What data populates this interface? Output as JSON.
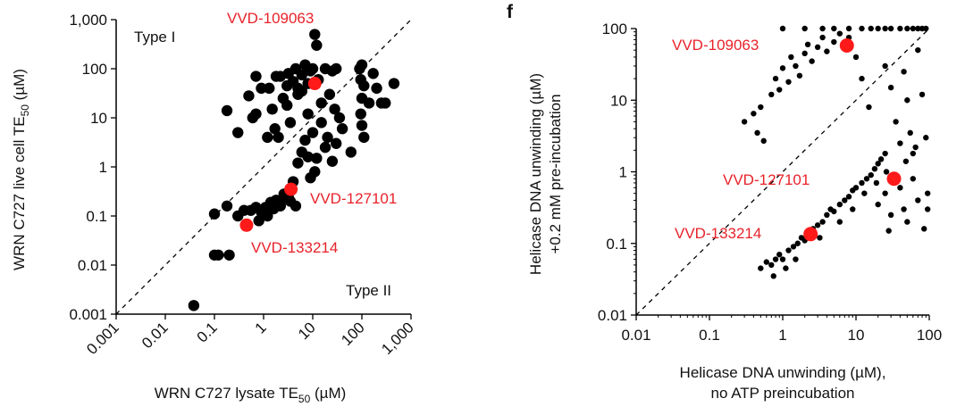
{
  "panel_f_letter": "f",
  "colors": {
    "points": "#000000",
    "highlight": "#ff1a1a",
    "callout_text": "#e8222a",
    "axes": "#000000"
  },
  "chart_data": [
    {
      "type": "scatter",
      "title": "",
      "xlabel": "WRN C727 lysate TE₅₀ (µM)",
      "xlabel_parts": [
        "WRN C727 lysate TE",
        "50",
        " (µM)"
      ],
      "ylabel": "WRN C727 live cell TE₅₀ (µM)",
      "ylabel_parts": [
        "WRN C727 live cell TE",
        "50",
        " (µM)"
      ],
      "xscale": "log",
      "yscale": "log",
      "xlim": [
        0.001,
        1000
      ],
      "ylim": [
        0.001,
        1000
      ],
      "xticks": [
        0.001,
        0.01,
        0.1,
        1,
        10,
        100,
        1000
      ],
      "xtick_labels": [
        "0.001",
        "0.01",
        "0.1",
        "1",
        "10",
        "100",
        "1,000"
      ],
      "yticks": [
        0.001,
        0.01,
        0.1,
        1,
        10,
        100,
        1000
      ],
      "ytick_labels": [
        "0.001",
        "0.01",
        "0.1",
        "1",
        "10",
        "100",
        "1,000"
      ],
      "diagonal": "dashed y = x",
      "annotations": [
        "Type I",
        "Type II"
      ],
      "points": [
        [
          0.038,
          0.0015
        ],
        [
          0.1,
          0.016
        ],
        [
          0.12,
          0.016
        ],
        [
          0.2,
          0.016
        ],
        [
          0.1,
          0.11
        ],
        [
          0.18,
          0.16
        ],
        [
          0.3,
          0.1
        ],
        [
          0.4,
          0.13
        ],
        [
          0.55,
          0.13
        ],
        [
          0.7,
          0.15
        ],
        [
          0.9,
          0.12
        ],
        [
          1.1,
          0.15
        ],
        [
          1.4,
          0.19
        ],
        [
          1.8,
          0.21
        ],
        [
          2.2,
          0.16
        ],
        [
          2.8,
          0.24
        ],
        [
          3.5,
          0.2
        ],
        [
          4.5,
          0.16
        ],
        [
          0.8,
          0.08
        ],
        [
          1.2,
          0.1
        ],
        [
          1.6,
          0.14
        ],
        [
          2.6,
          0.28
        ],
        [
          3.2,
          0.24
        ],
        [
          4,
          0.5
        ],
        [
          5,
          1.2
        ],
        [
          6,
          2
        ],
        [
          7,
          3.5
        ],
        [
          8,
          1.6
        ],
        [
          9,
          0.6
        ],
        [
          10,
          5
        ],
        [
          12,
          1.5
        ],
        [
          15,
          8
        ],
        [
          18,
          2.5
        ],
        [
          20,
          4
        ],
        [
          25,
          1.3
        ],
        [
          30,
          3
        ],
        [
          35,
          10
        ],
        [
          40,
          6
        ],
        [
          60,
          2
        ],
        [
          11,
          0.8
        ],
        [
          0.18,
          14
        ],
        [
          0.3,
          5
        ],
        [
          0.5,
          28
        ],
        [
          0.6,
          10
        ],
        [
          0.7,
          70
        ],
        [
          0.9,
          40
        ],
        [
          1.2,
          4
        ],
        [
          1.5,
          15
        ],
        [
          1.7,
          6
        ],
        [
          2,
          4
        ],
        [
          2.2,
          70
        ],
        [
          2.5,
          25
        ],
        [
          3,
          18
        ],
        [
          3.5,
          8
        ],
        [
          3.2,
          80
        ],
        [
          4,
          55
        ],
        [
          4.5,
          100
        ],
        [
          5,
          30
        ],
        [
          6,
          75
        ],
        [
          7,
          120
        ],
        [
          8,
          50
        ],
        [
          9,
          90
        ],
        [
          10,
          100
        ],
        [
          11,
          500
        ],
        [
          12,
          300
        ],
        [
          13,
          60
        ],
        [
          15,
          20
        ],
        [
          18,
          100
        ],
        [
          22,
          30
        ],
        [
          25,
          90
        ],
        [
          30,
          100
        ],
        [
          28,
          15
        ],
        [
          3,
          45
        ],
        [
          6,
          35
        ],
        [
          90,
          100
        ],
        [
          100,
          120
        ],
        [
          95,
          60
        ],
        [
          110,
          45
        ],
        [
          100,
          25
        ],
        [
          95,
          12
        ],
        [
          100,
          7
        ],
        [
          110,
          4
        ],
        [
          140,
          20
        ],
        [
          170,
          80
        ],
        [
          200,
          40
        ],
        [
          250,
          20
        ],
        [
          300,
          20
        ],
        [
          450,
          50
        ],
        [
          1.8,
          70
        ],
        [
          1.3,
          40
        ],
        [
          0.7,
          12
        ],
        [
          8,
          12
        ],
        [
          5,
          40
        ]
      ],
      "highlighted": [
        {
          "label": "VVD-109063",
          "x": 11,
          "y": 50
        },
        {
          "label": "VVD-127101",
          "x": 3.6,
          "y": 0.35
        },
        {
          "label": "VVD-133214",
          "x": 0.45,
          "y": 0.065
        }
      ]
    },
    {
      "type": "scatter",
      "title": "",
      "xlabel_lines": [
        "Helicase DNA unwinding (µM),",
        "no ATP preincubation"
      ],
      "ylabel_lines": [
        "Helicase DNA unwinding (µM)",
        "+0.2 mM pre-incubation"
      ],
      "xscale": "log",
      "yscale": "log",
      "xlim": [
        0.01,
        100
      ],
      "ylim": [
        0.01,
        100
      ],
      "xticks": [
        0.01,
        0.1,
        1,
        10,
        100
      ],
      "xtick_labels": [
        "0.01",
        "0.1",
        "1",
        "10",
        "100"
      ],
      "yticks": [
        0.01,
        0.1,
        1,
        10,
        100
      ],
      "ytick_labels": [
        "0.01",
        "0.1",
        "1",
        "10",
        "100"
      ],
      "diagonal": "dashed y = x",
      "points": [
        [
          0.3,
          5
        ],
        [
          0.4,
          6.5
        ],
        [
          0.45,
          3.5
        ],
        [
          0.5,
          8
        ],
        [
          0.55,
          2.7
        ],
        [
          0.7,
          12
        ],
        [
          0.8,
          20
        ],
        [
          0.9,
          14
        ],
        [
          1.0,
          28
        ],
        [
          1.2,
          18
        ],
        [
          1.3,
          40
        ],
        [
          1.5,
          30
        ],
        [
          1.7,
          22
        ],
        [
          2.0,
          45
        ],
        [
          2.2,
          60
        ],
        [
          2.5,
          35
        ],
        [
          3.0,
          55
        ],
        [
          3.5,
          75
        ],
        [
          4.0,
          48
        ],
        [
          5.0,
          65
        ],
        [
          6.0,
          85
        ],
        [
          8.0,
          75
        ],
        [
          10,
          40
        ],
        [
          12,
          20
        ],
        [
          15,
          8
        ],
        [
          1.0,
          100
        ],
        [
          2.0,
          100
        ],
        [
          3.5,
          100
        ],
        [
          5.0,
          100
        ],
        [
          8.0,
          100
        ],
        [
          12,
          100
        ],
        [
          16,
          100
        ],
        [
          20,
          100
        ],
        [
          25,
          100
        ],
        [
          30,
          100
        ],
        [
          40,
          100
        ],
        [
          50,
          100
        ],
        [
          60,
          100
        ],
        [
          70,
          100
        ],
        [
          80,
          100
        ],
        [
          90,
          100
        ],
        [
          25,
          30
        ],
        [
          30,
          15
        ],
        [
          35,
          5
        ],
        [
          40,
          2.5
        ],
        [
          45,
          25
        ],
        [
          50,
          10
        ],
        [
          55,
          3.5
        ],
        [
          60,
          1.8
        ],
        [
          70,
          50
        ],
        [
          80,
          12
        ],
        [
          90,
          3
        ],
        [
          95,
          0.5
        ],
        [
          20,
          0.35
        ],
        [
          25,
          0.5
        ],
        [
          28,
          0.15
        ],
        [
          30,
          0.25
        ],
        [
          40,
          0.6
        ],
        [
          45,
          0.3
        ],
        [
          50,
          0.2
        ],
        [
          60,
          0.8
        ],
        [
          70,
          0.4
        ],
        [
          85,
          0.16
        ],
        [
          95,
          0.3
        ],
        [
          0.5,
          0.045
        ],
        [
          0.6,
          0.055
        ],
        [
          0.7,
          0.05
        ],
        [
          0.8,
          0.06
        ],
        [
          0.9,
          0.07
        ],
        [
          1.0,
          0.06
        ],
        [
          1.2,
          0.08
        ],
        [
          1.4,
          0.09
        ],
        [
          1.6,
          0.1
        ],
        [
          1.8,
          0.12
        ],
        [
          2.0,
          0.11
        ],
        [
          2.3,
          0.14
        ],
        [
          2.6,
          0.16
        ],
        [
          3.0,
          0.18
        ],
        [
          3.5,
          0.2
        ],
        [
          4.0,
          0.25
        ],
        [
          4.5,
          0.3
        ],
        [
          5.0,
          0.28
        ],
        [
          6.0,
          0.35
        ],
        [
          7.0,
          0.4
        ],
        [
          8.0,
          0.45
        ],
        [
          9.0,
          0.55
        ],
        [
          10,
          0.6
        ],
        [
          12,
          0.7
        ],
        [
          14,
          0.8
        ],
        [
          16,
          0.9
        ],
        [
          18,
          1.1
        ],
        [
          20,
          1.3
        ],
        [
          22,
          1.5
        ],
        [
          25,
          1.8
        ],
        [
          0.75,
          0.035
        ],
        [
          1.1,
          0.045
        ],
        [
          1.5,
          0.06
        ],
        [
          3.2,
          0.12
        ],
        [
          6.0,
          0.2
        ],
        [
          9.0,
          0.3
        ],
        [
          13,
          0.5
        ],
        [
          19,
          0.7
        ],
        [
          26,
          1.0
        ],
        [
          35,
          0.9
        ],
        [
          48,
          1.4
        ],
        [
          65,
          2.2
        ]
      ],
      "highlighted": [
        {
          "label": "VVD-109063",
          "x": 7.5,
          "y": 58
        },
        {
          "label": "VVD-127101",
          "x": 33,
          "y": 0.8
        },
        {
          "label": "VVD-133214",
          "x": 2.4,
          "y": 0.135
        }
      ]
    }
  ]
}
